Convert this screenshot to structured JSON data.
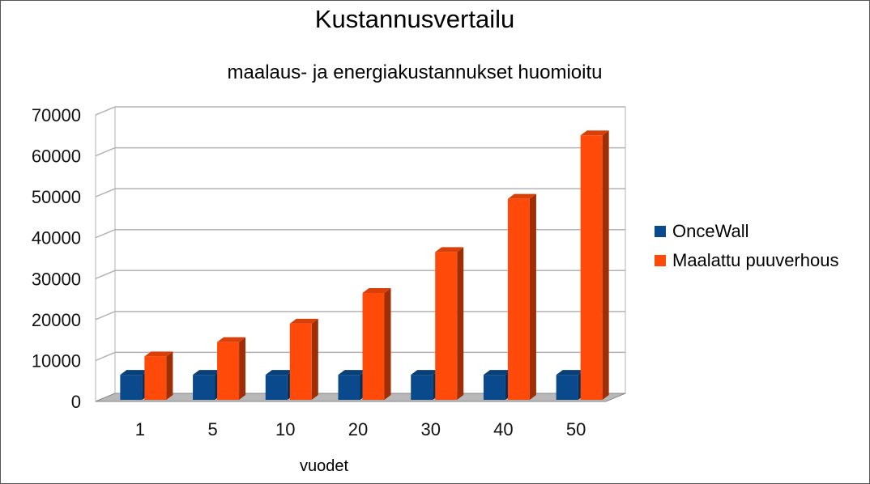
{
  "chart_data": {
    "type": "bar",
    "title": "Kustannusvertailu",
    "subtitle": "maalaus- ja energiakustannukset huomioitu",
    "xlabel": "vuodet",
    "ylabel": "",
    "categories": [
      "1",
      "5",
      "10",
      "20",
      "30",
      "40",
      "50"
    ],
    "series": [
      {
        "name": "OnceWall",
        "color": "#0a4a8c",
        "values": [
          6500,
          6500,
          6500,
          6500,
          6500,
          6500,
          6500
        ]
      },
      {
        "name": "Maalattu puuverhous",
        "color": "#ff4a0a",
        "values": [
          11000,
          14500,
          19000,
          26500,
          36500,
          49500,
          65000
        ]
      }
    ],
    "ylim": [
      0,
      70000
    ],
    "yticks": [
      "0",
      "10000",
      "20000",
      "30000",
      "40000",
      "50000",
      "60000",
      "70000"
    ],
    "grid": true,
    "legend": "right",
    "style": "3d-columns"
  }
}
